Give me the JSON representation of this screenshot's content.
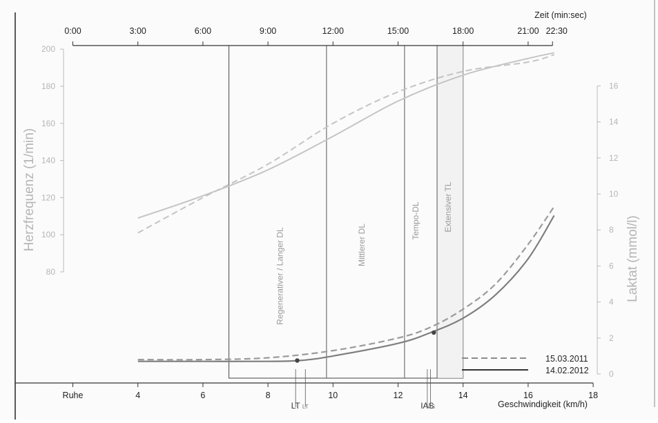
{
  "chart_data": {
    "type": "line",
    "top_axis": {
      "label": "Zeit (min:sec)",
      "ticks": [
        "0:00",
        "3:00",
        "6:00",
        "9:00",
        "12:00",
        "15:00",
        "18:00",
        "21:00",
        "22:30"
      ],
      "tick_speeds": [
        2,
        4,
        6,
        8,
        10,
        12,
        14,
        16,
        16.75
      ]
    },
    "x_axis": {
      "label": "Geschwindigkeit (km/h)",
      "range": [
        2,
        18
      ],
      "ticks": [
        {
          "v": 2,
          "t": "Ruhe"
        },
        {
          "v": 4,
          "t": "4"
        },
        {
          "v": 6,
          "t": "6"
        },
        {
          "v": 8,
          "t": "8"
        },
        {
          "v": 10,
          "t": "10"
        },
        {
          "v": 12,
          "t": "12"
        },
        {
          "v": 14,
          "t": "14"
        },
        {
          "v": 16,
          "t": "16"
        },
        {
          "v": 18,
          "t": "18"
        }
      ],
      "threshold_labels": [
        {
          "v": 8.85,
          "t": "LT"
        },
        {
          "v": 9.15,
          "t": "LT"
        },
        {
          "v": 12.9,
          "t": "IAS"
        },
        {
          "v": 13.0,
          "t": "IAS"
        }
      ]
    },
    "y_left": {
      "label": "Herzfrequenz (1/min)",
      "range": [
        80,
        200
      ],
      "ticks": [
        80,
        100,
        120,
        140,
        160,
        180,
        200
      ]
    },
    "y_right": {
      "label": "Laktat (mmol/l)",
      "range": [
        0,
        16
      ],
      "ticks": [
        0,
        2,
        4,
        6,
        8,
        10,
        12,
        14,
        16
      ]
    },
    "zones": [
      {
        "name": "Regenerativer / Langer DL",
        "from": 6.8,
        "to": 9.8
      },
      {
        "name": "Mittlerer DL",
        "from": 9.8,
        "to": 12.2
      },
      {
        "name": "Tempo-DL",
        "from": 12.2,
        "to": 13.2
      },
      {
        "name": "Extensiver TL",
        "from": 13.2,
        "to": 14.0
      }
    ],
    "series": [
      {
        "name": "15.03.2011",
        "style": "dashed",
        "kind": "hr",
        "points": [
          [
            4,
            101
          ],
          [
            6,
            120
          ],
          [
            8,
            138
          ],
          [
            10,
            160
          ],
          [
            12,
            177
          ],
          [
            14,
            188
          ],
          [
            16,
            193
          ],
          [
            16.8,
            197
          ]
        ]
      },
      {
        "name": "14.02.2012",
        "style": "solid",
        "kind": "hr",
        "points": [
          [
            4,
            109
          ],
          [
            6,
            121
          ],
          [
            8,
            135
          ],
          [
            10,
            153
          ],
          [
            12,
            172
          ],
          [
            14,
            186
          ],
          [
            16,
            195
          ],
          [
            16.8,
            198
          ]
        ]
      },
      {
        "name": "15.03.2011",
        "style": "dashed",
        "kind": "lactate",
        "points": [
          [
            4,
            0.8
          ],
          [
            6,
            0.8
          ],
          [
            8,
            0.9
          ],
          [
            10,
            1.3
          ],
          [
            12,
            2.0
          ],
          [
            13,
            2.6
          ],
          [
            14,
            3.6
          ],
          [
            15,
            5.0
          ],
          [
            16,
            7.2
          ],
          [
            16.8,
            9.3
          ]
        ]
      },
      {
        "name": "14.02.2012",
        "style": "solid",
        "kind": "lactate",
        "points": [
          [
            4,
            0.7
          ],
          [
            6,
            0.7
          ],
          [
            8,
            0.7
          ],
          [
            9,
            0.75
          ],
          [
            10,
            1.0
          ],
          [
            12,
            1.7
          ],
          [
            13,
            2.3
          ],
          [
            14,
            3.1
          ],
          [
            15,
            4.4
          ],
          [
            16,
            6.4
          ],
          [
            16.8,
            8.8
          ]
        ]
      }
    ],
    "threshold_markers": [
      {
        "x": 8.9,
        "lactate": 0.75
      },
      {
        "x": 13.1,
        "lactate": 2.3
      }
    ],
    "legend": {
      "placement": "bottom-right",
      "entries": [
        {
          "label": "15.03.2011",
          "style": "dashed"
        },
        {
          "label": "14.02.2012",
          "style": "solid"
        }
      ]
    }
  }
}
